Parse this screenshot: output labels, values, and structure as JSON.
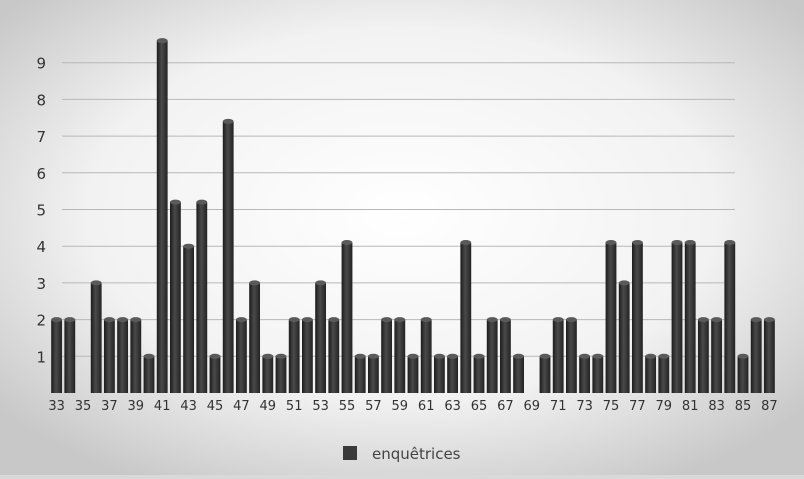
{
  "chart_data": {
    "type": "bar",
    "title": "",
    "xlabel": "",
    "ylabel": "",
    "ylim": [
      0,
      9.6
    ],
    "y_ticks": [
      "1",
      "2",
      "3",
      "4",
      "5",
      "6",
      "7",
      "8",
      "9"
    ],
    "x_tick_labels": [
      "33",
      "35",
      "37",
      "39",
      "41",
      "43",
      "45",
      "47",
      "49",
      "51",
      "53",
      "55",
      "57",
      "59",
      "61",
      "63",
      "65",
      "67",
      "69",
      "71",
      "73",
      "75",
      "77",
      "79",
      "81",
      "83",
      "85",
      "87"
    ],
    "grid": true,
    "legend_position": "bottom-center",
    "series": [
      {
        "name": "enquêtrices",
        "color": "#3a3a3a",
        "x": [
          33,
          34,
          36,
          37,
          38,
          39,
          40,
          41,
          42,
          43,
          44,
          45,
          46,
          47,
          48,
          49,
          50,
          51,
          52,
          53,
          54,
          55,
          56,
          57,
          58,
          59,
          60,
          61,
          62,
          63,
          64,
          65,
          66,
          67,
          68,
          70,
          71,
          72,
          73,
          74,
          75,
          76,
          77,
          78,
          79,
          80,
          81,
          82,
          83,
          84,
          85,
          86,
          87
        ],
        "values": [
          2,
          2,
          3,
          2,
          2,
          2,
          1,
          9.6,
          5.2,
          4,
          5.2,
          1,
          7.4,
          2,
          3,
          1,
          1,
          2,
          2,
          3,
          2,
          4.1,
          1,
          1,
          2,
          2,
          1,
          2,
          1,
          1,
          4.1,
          1,
          2,
          2,
          1,
          1,
          2,
          2,
          1,
          1,
          4.1,
          3,
          4.1,
          1,
          1,
          4.1,
          4.1,
          2,
          2,
          4.1,
          1,
          2,
          2
        ]
      }
    ]
  }
}
